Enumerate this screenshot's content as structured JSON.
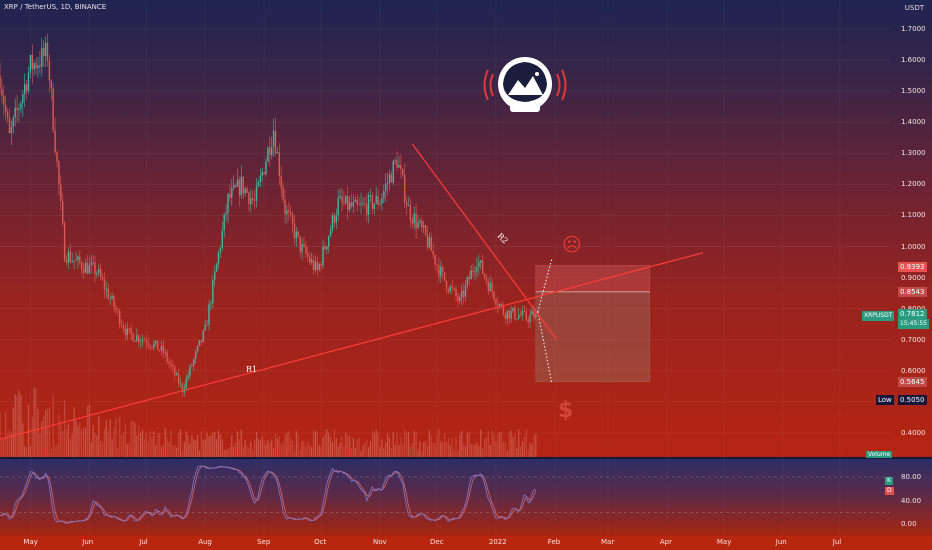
{
  "header": {
    "symbol_line": "XRP / TetherUS, 1D, BINANCE",
    "currency": "USDT"
  },
  "colors": {
    "up": "#3fb8a3",
    "down": "#e05a55",
    "trend": "#ff3b3b",
    "oscillator": "#7a76c9",
    "accent_red": "#e53935",
    "label_green": "#2a9a80"
  },
  "price_axis": {
    "ticks": [
      "1.7000",
      "1.6000",
      "1.5000",
      "1.4000",
      "1.3000",
      "1.2000",
      "1.1000",
      "1.0000",
      "0.9000",
      "0.8000",
      "0.7000",
      "0.6000",
      "0.5000",
      "0.4000"
    ],
    "tick_values": [
      1.7,
      1.6,
      1.5,
      1.4,
      1.3,
      1.2,
      1.1,
      1.0,
      0.9,
      0.8,
      0.7,
      0.6,
      0.5,
      0.4
    ]
  },
  "price_tags": {
    "target_price": "0.9393",
    "mid_price": "0.8543",
    "symbol_tag": "XRPUSDT",
    "last_price": "0.7812",
    "countdown": "15:45:55",
    "stop_price": "0.5645",
    "low_label": "Low",
    "low_value": "0.5050",
    "volume_label": "Volume"
  },
  "osc_axis": {
    "ticks": [
      "80.00",
      "40.00",
      "0.00"
    ],
    "tick_values": [
      80,
      40,
      0
    ],
    "k_label": "K",
    "d_label": "D"
  },
  "time_axis": [
    "May",
    "Jun",
    "Jul",
    "Aug",
    "Sep",
    "Oct",
    "Nov",
    "Dec",
    "2022",
    "Feb",
    "Mar",
    "Apr",
    "May",
    "Jun",
    "Jul"
  ],
  "annotations": {
    "r1": "R1",
    "r2": "R2",
    "sad_emoji": "☹",
    "dollar": "$"
  },
  "chart_data": {
    "type": "candlestick",
    "x_range": [
      "2021-04-15",
      "2022-07-31"
    ],
    "y_range": [
      0.36,
      1.8
    ],
    "data_end": "2022-01-22",
    "last_close": 0.7812,
    "period_low": 0.505,
    "anchors": [
      [
        "2021-04-15",
        1.55
      ],
      [
        "2021-04-20",
        1.35
      ],
      [
        "2021-05-01",
        1.58
      ],
      [
        "2021-05-10",
        1.62
      ],
      [
        "2021-05-19",
        0.98
      ],
      [
        "2021-05-25",
        0.95
      ],
      [
        "2021-06-05",
        0.92
      ],
      [
        "2021-06-21",
        0.72
      ],
      [
        "2021-07-01",
        0.7
      ],
      [
        "2021-07-10",
        0.66
      ],
      [
        "2021-07-20",
        0.54
      ],
      [
        "2021-08-01",
        0.73
      ],
      [
        "2021-08-13",
        1.15
      ],
      [
        "2021-08-20",
        1.2
      ],
      [
        "2021-08-27",
        1.14
      ],
      [
        "2021-09-06",
        1.38
      ],
      [
        "2021-09-12",
        1.12
      ],
      [
        "2021-09-20",
        1.0
      ],
      [
        "2021-09-29",
        0.92
      ],
      [
        "2021-10-10",
        1.14
      ],
      [
        "2021-10-20",
        1.12
      ],
      [
        "2021-11-01",
        1.15
      ],
      [
        "2021-11-10",
        1.28
      ],
      [
        "2021-11-16",
        1.12
      ],
      [
        "2021-11-25",
        1.03
      ],
      [
        "2021-12-04",
        0.9
      ],
      [
        "2021-12-13",
        0.82
      ],
      [
        "2021-12-22",
        0.96
      ],
      [
        "2021-12-28",
        0.88
      ],
      [
        "2022-01-05",
        0.79
      ],
      [
        "2022-01-13",
        0.78
      ],
      [
        "2022-01-17",
        0.77
      ],
      [
        "2022-01-22",
        0.7812
      ]
    ],
    "trendlines": [
      {
        "name": "R1",
        "from": [
          "2021-04-15",
          0.38
        ],
        "to": [
          "2022-04-20",
          0.98
        ]
      },
      {
        "name": "R2",
        "from": [
          "2021-11-18",
          1.33
        ],
        "to": [
          "2022-02-02",
          0.7
        ]
      }
    ],
    "position": {
      "start": "2022-01-22",
      "end": "2022-03-23",
      "entry": 0.8543,
      "target": 0.9393,
      "stop": 0.5645
    },
    "oscillator": {
      "type": "stochastic",
      "overbought": 80,
      "oversold": 20,
      "ylim": [
        -5,
        105
      ]
    }
  }
}
